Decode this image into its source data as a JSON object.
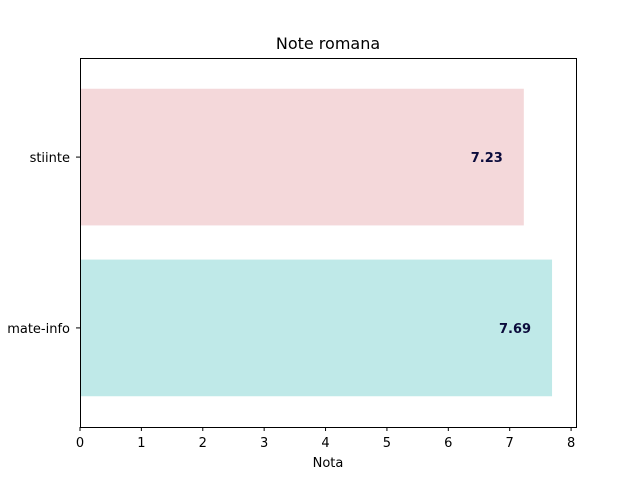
{
  "chart_data": {
    "type": "bar",
    "orientation": "horizontal",
    "title": "Note romana",
    "xlabel": "Nota",
    "ylabel": "",
    "xlim": [
      0,
      8.08
    ],
    "xticks": [
      "0",
      "1",
      "2",
      "3",
      "4",
      "5",
      "6",
      "7",
      "8"
    ],
    "categories": [
      "mate-info",
      "stiinte"
    ],
    "values": [
      7.69,
      7.23
    ],
    "value_labels": [
      "7.69",
      "7.23"
    ],
    "bar_colors": [
      "#bfe9e8",
      "#f4d8da"
    ],
    "label_color": "#0b0b3b",
    "grid": false,
    "legend": "none"
  }
}
